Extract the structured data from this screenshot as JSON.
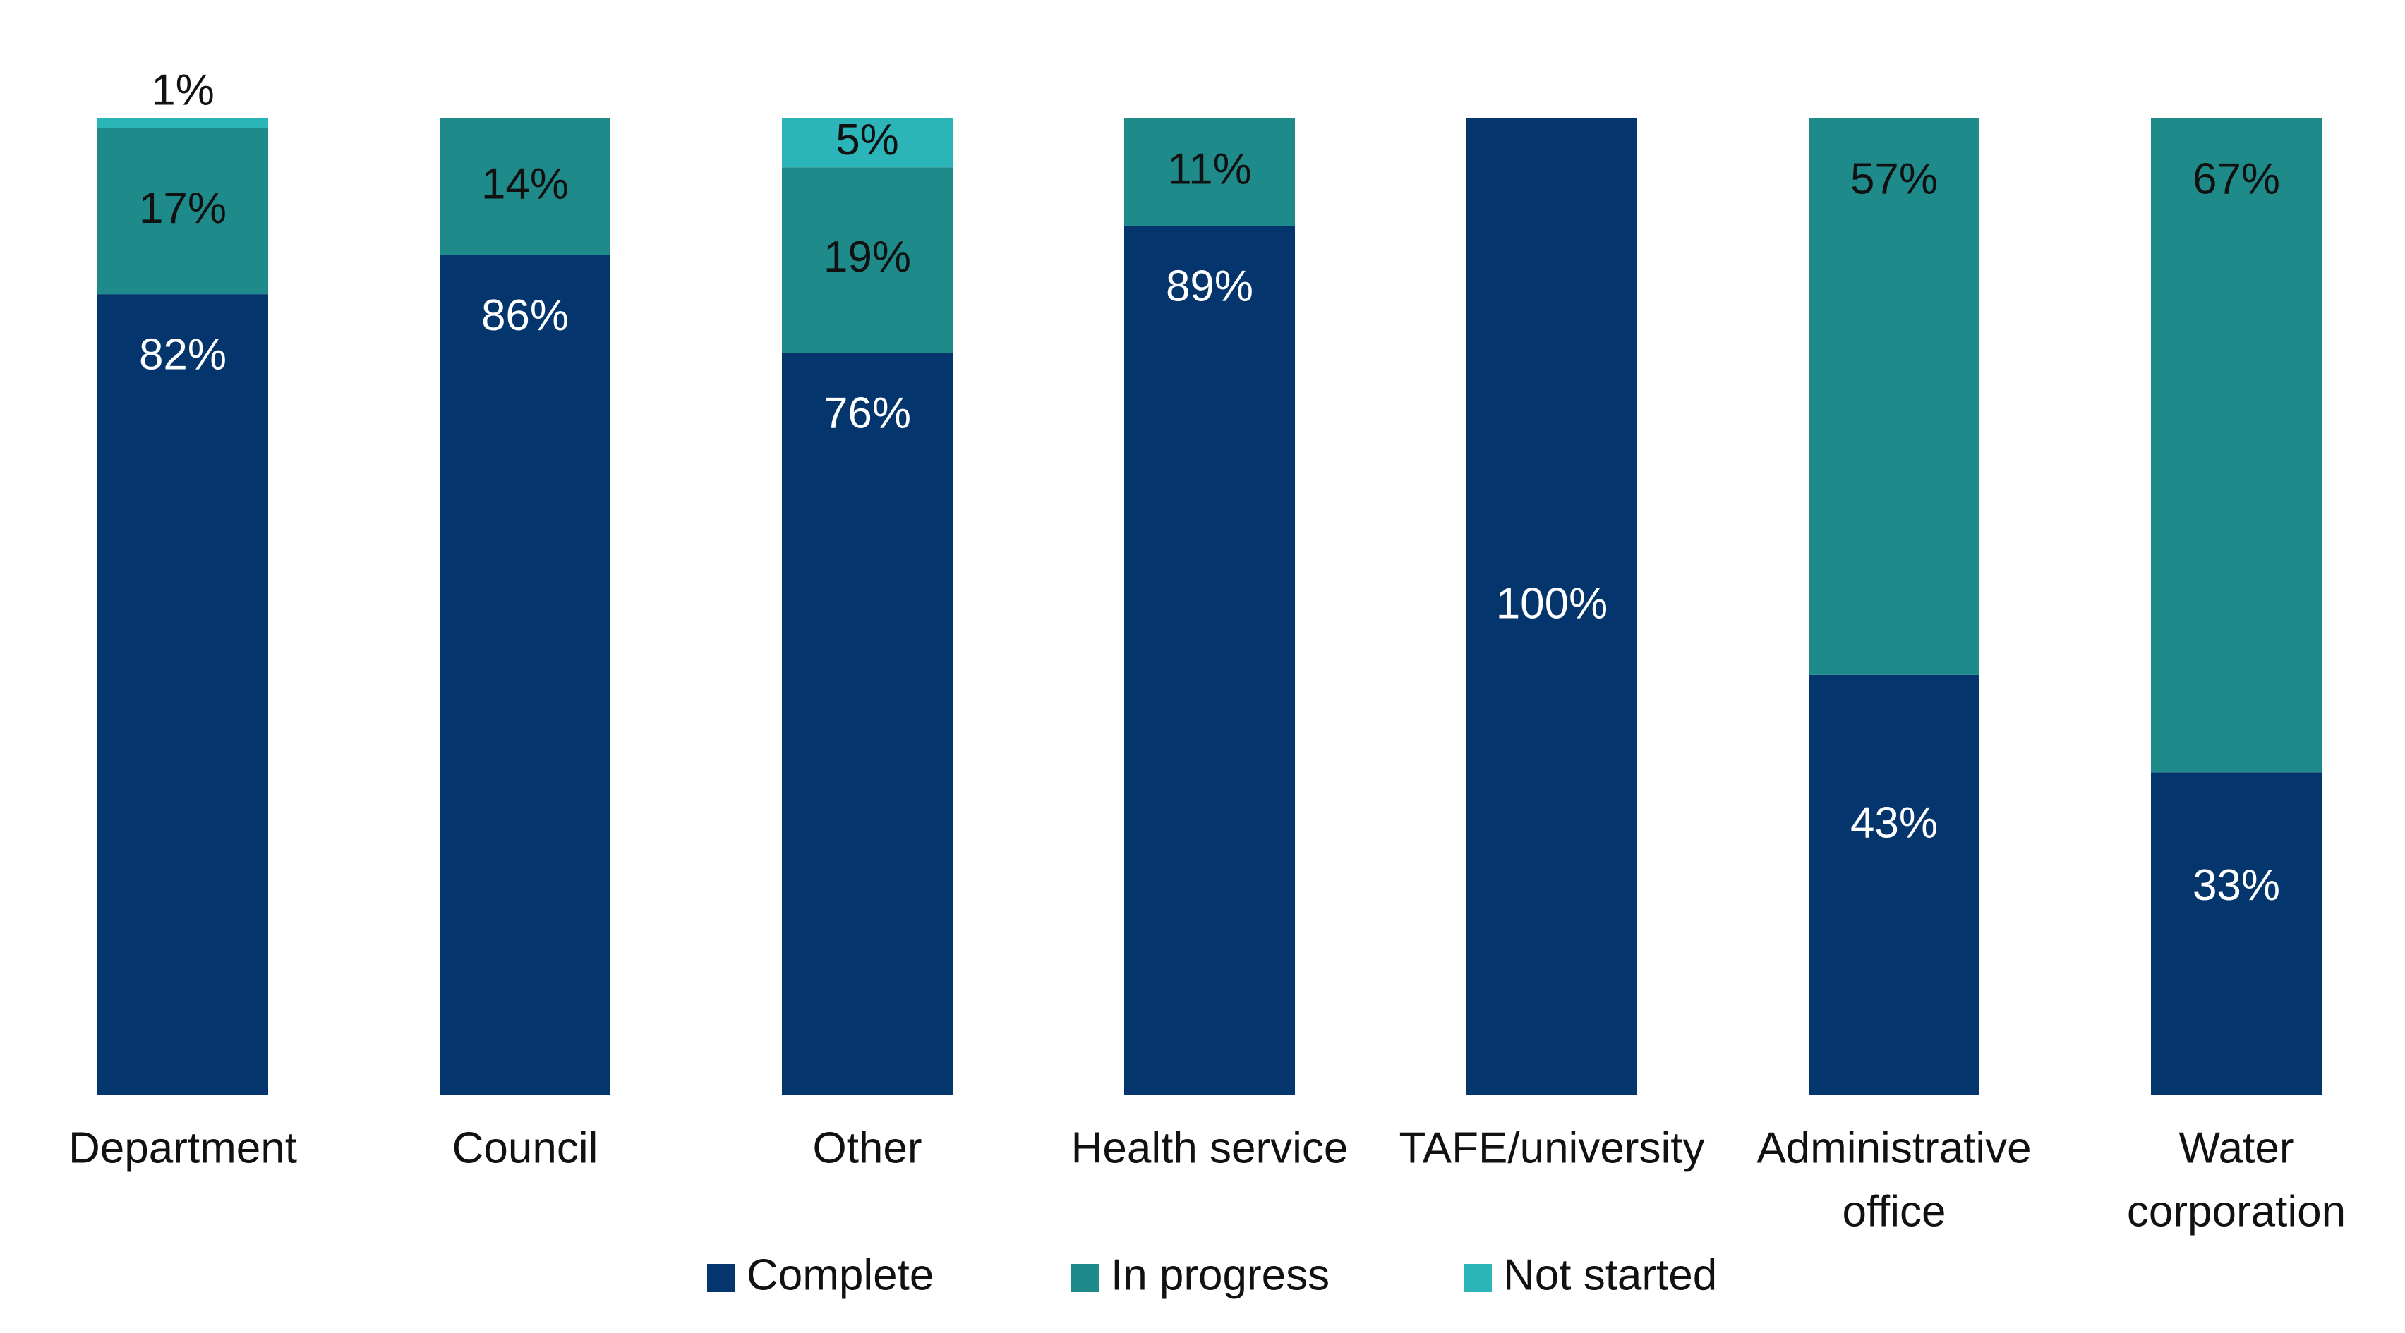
{
  "chart_data": {
    "type": "bar",
    "stacked": true,
    "title": "",
    "xlabel": "",
    "ylabel": "",
    "ylim": [
      0,
      100
    ],
    "grid": false,
    "legend_position": "bottom-center",
    "categories": [
      "Department",
      "Council",
      "Other",
      "Health service",
      "TAFE/university",
      "Administrative office",
      "Water corporation"
    ],
    "category_lines": [
      [
        "Department"
      ],
      [
        "Council"
      ],
      [
        "Other"
      ],
      [
        "Health service"
      ],
      [
        "TAFE/university"
      ],
      [
        "Administrative",
        "office"
      ],
      [
        "Water",
        "corporation"
      ]
    ],
    "series": [
      {
        "name": "Complete",
        "color": "#04366D",
        "label_color": "#ffffff",
        "values": [
          82,
          86,
          76,
          89,
          100,
          43,
          33
        ],
        "labels": [
          "82%",
          "86%",
          "76%",
          "89%",
          "100%",
          "43%",
          "33%"
        ]
      },
      {
        "name": "In progress",
        "color": "#1F8A8A",
        "label_color": "#111111",
        "values": [
          17,
          14,
          19,
          11,
          0,
          57,
          67
        ],
        "labels": [
          "17%",
          "14%",
          "19%",
          "11%",
          "",
          "57%",
          "67%"
        ]
      },
      {
        "name": "Not started",
        "color": "#2CB5B8",
        "label_color": "#111111",
        "values": [
          1,
          0,
          5,
          0,
          0,
          0,
          0
        ],
        "labels": [
          "1%",
          "",
          "5%",
          "",
          "",
          "",
          ""
        ]
      }
    ]
  }
}
